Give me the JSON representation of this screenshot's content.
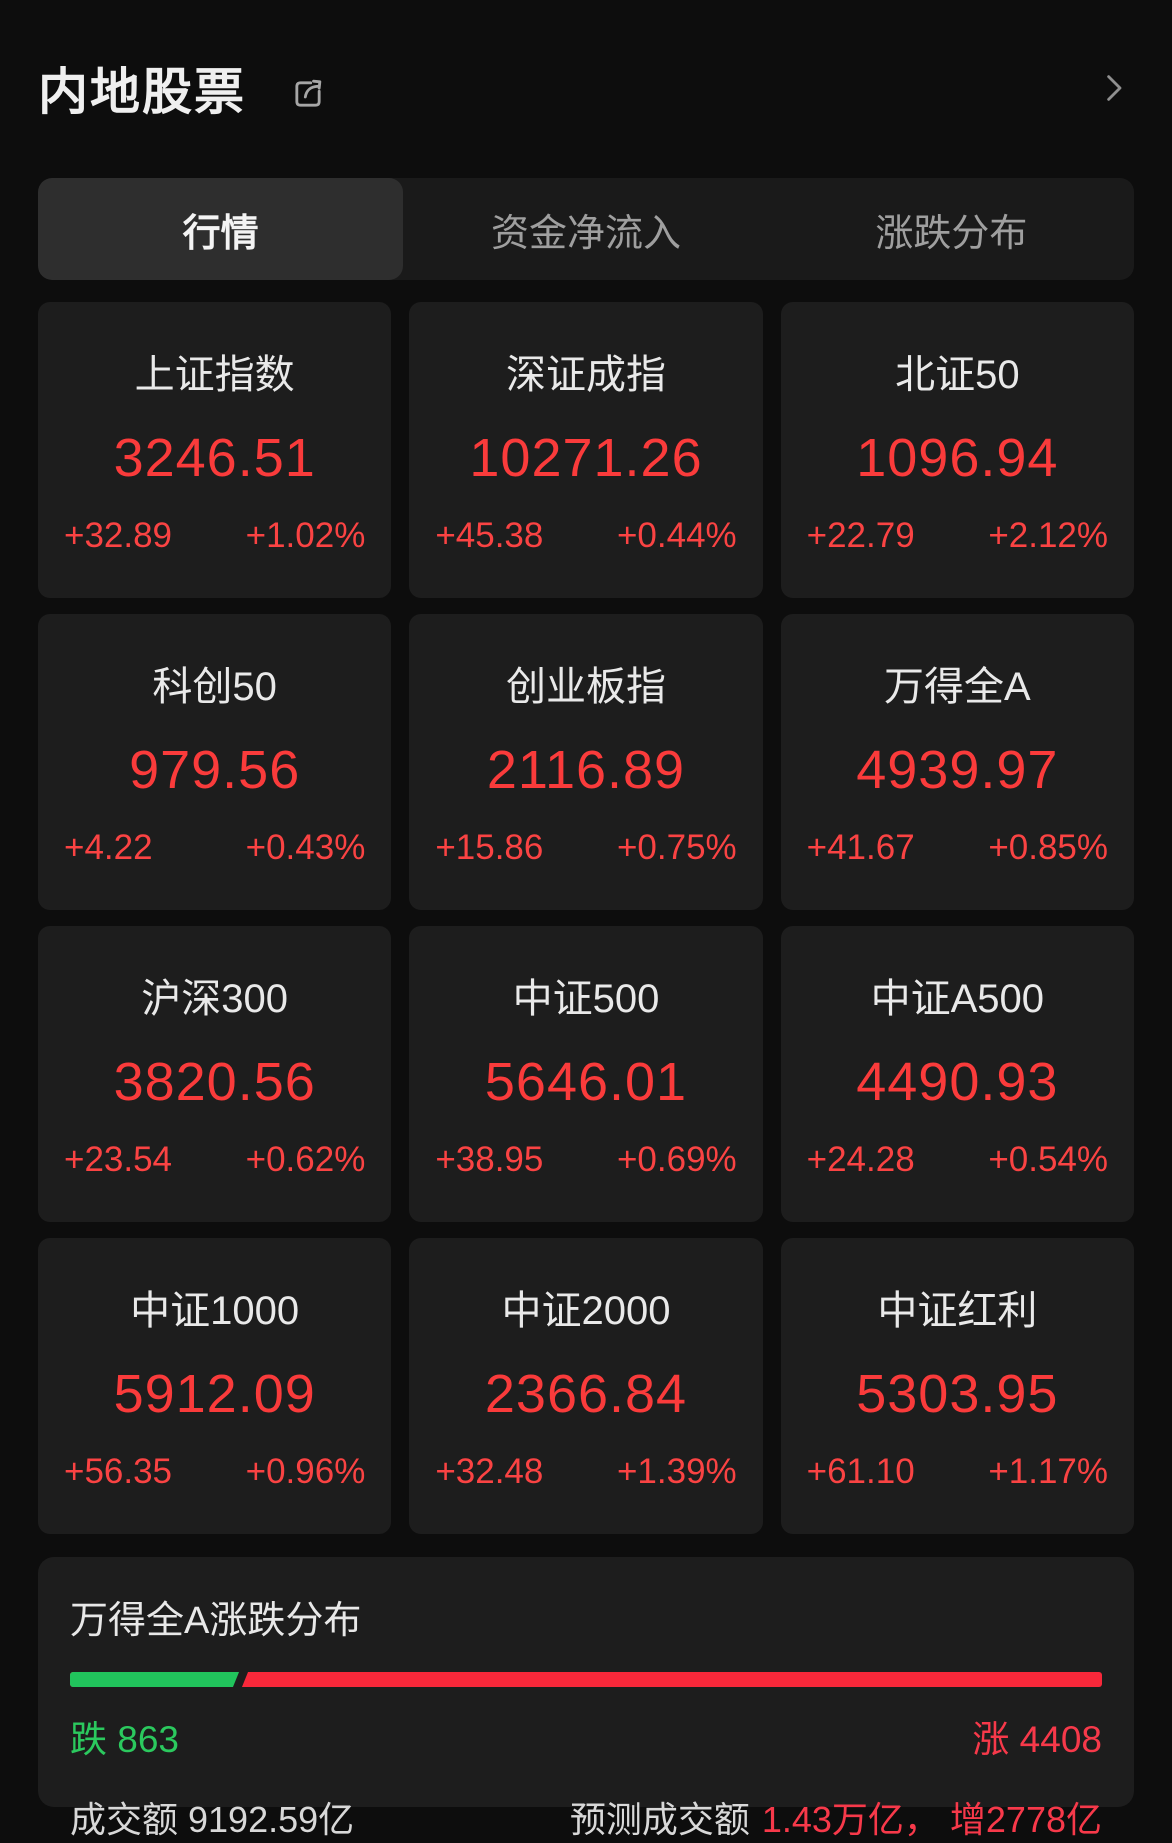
{
  "header": {
    "title": "内地股票"
  },
  "tabs": [
    {
      "label": "行情",
      "active": true
    },
    {
      "label": "资金净流入",
      "active": false
    },
    {
      "label": "涨跌分布",
      "active": false
    }
  ],
  "indices": [
    {
      "name": "上证指数",
      "value": "3246.51",
      "change": "+32.89",
      "change_pct": "+1.02%"
    },
    {
      "name": "深证成指",
      "value": "10271.26",
      "change": "+45.38",
      "change_pct": "+0.44%"
    },
    {
      "name": "北证50",
      "value": "1096.94",
      "change": "+22.79",
      "change_pct": "+2.12%"
    },
    {
      "name": "科创50",
      "value": "979.56",
      "change": "+4.22",
      "change_pct": "+0.43%"
    },
    {
      "name": "创业板指",
      "value": "2116.89",
      "change": "+15.86",
      "change_pct": "+0.75%"
    },
    {
      "name": "万得全A",
      "value": "4939.97",
      "change": "+41.67",
      "change_pct": "+0.85%"
    },
    {
      "name": "沪深300",
      "value": "3820.56",
      "change": "+23.54",
      "change_pct": "+0.62%"
    },
    {
      "name": "中证500",
      "value": "5646.01",
      "change": "+38.95",
      "change_pct": "+0.69%"
    },
    {
      "name": "中证A500",
      "value": "4490.93",
      "change": "+24.28",
      "change_pct": "+0.54%"
    },
    {
      "name": "中证1000",
      "value": "5912.09",
      "change": "+56.35",
      "change_pct": "+0.96%"
    },
    {
      "name": "中证2000",
      "value": "2366.84",
      "change": "+32.48",
      "change_pct": "+1.39%"
    },
    {
      "name": "中证红利",
      "value": "5303.95",
      "change": "+61.10",
      "change_pct": "+1.17%"
    }
  ],
  "distribution": {
    "title": "万得全A涨跌分布",
    "down_label": "跌 863",
    "up_label": "涨 4408",
    "down_count": 863,
    "up_count": 4408,
    "down_bar_pct": 16.4,
    "turnover_label": "成交额 9192.59亿",
    "forecast_label": "预测成交额",
    "forecast_value": "1.43万亿， 增2778亿"
  },
  "colors": {
    "page_bg": "#0d0d0d",
    "card_bg": "#1d1d1d",
    "active_tab_bg": "#2e2e2e",
    "up_red": "#fa3b3b",
    "bar_red": "#f8283a",
    "down_green": "#21c45c"
  }
}
